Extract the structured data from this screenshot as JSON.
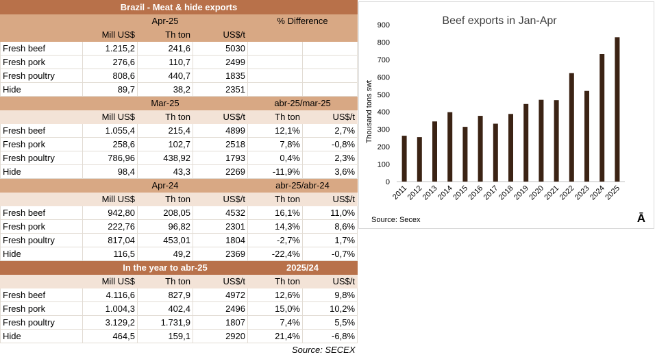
{
  "table": {
    "title": "Brazil - Meat & hide exports",
    "section1": {
      "period": "Apr-25",
      "diff_label": "% Difference",
      "headers": [
        "Mill US$",
        "Th ton",
        "US$/t"
      ],
      "rows": [
        {
          "product": "Fresh beef",
          "mill_usd": "1.215,2",
          "th_ton": "241,6",
          "usd_t": "5030"
        },
        {
          "product": "Fresh pork",
          "mill_usd": "276,6",
          "th_ton": "110,7",
          "usd_t": "2499"
        },
        {
          "product": "Fresh poultry",
          "mill_usd": "808,6",
          "th_ton": "440,7",
          "usd_t": "1835"
        },
        {
          "product": "Hide",
          "mill_usd": "89,7",
          "th_ton": "38,2",
          "usd_t": "2351"
        }
      ]
    },
    "section2": {
      "period": "Mar-25",
      "comparison": "abr-25/mar-25",
      "headers": [
        "Mill US$",
        "Th ton",
        "US$/t",
        "Th ton",
        "US$/t"
      ],
      "rows": [
        {
          "product": "Fresh beef",
          "mill_usd": "1.055,4",
          "th_ton": "215,4",
          "usd_t": "4899",
          "pct_ton": "12,1%",
          "pct_usd_t": "2,7%"
        },
        {
          "product": "Fresh pork",
          "mill_usd": "258,6",
          "th_ton": "102,7",
          "usd_t": "2518",
          "pct_ton": "7,8%",
          "pct_usd_t": "-0,8%"
        },
        {
          "product": "Fresh poultry",
          "mill_usd": "786,96",
          "th_ton": "438,92",
          "usd_t": "1793",
          "pct_ton": "0,4%",
          "pct_usd_t": "2,3%"
        },
        {
          "product": "Hide",
          "mill_usd": "98,4",
          "th_ton": "43,3",
          "usd_t": "2269",
          "pct_ton": "-11,9%",
          "pct_usd_t": "3,6%"
        }
      ]
    },
    "section3": {
      "period": "Apr-24",
      "comparison": "abr-25/abr-24",
      "headers": [
        "Mill US$",
        "Th ton",
        "US$/t",
        "Th ton",
        "US$/t"
      ],
      "rows": [
        {
          "product": "Fresh beef",
          "mill_usd": "942,80",
          "th_ton": "208,05",
          "usd_t": "4532",
          "pct_ton": "16,1%",
          "pct_usd_t": "11,0%"
        },
        {
          "product": "Fresh pork",
          "mill_usd": "222,76",
          "th_ton": "96,82",
          "usd_t": "2301",
          "pct_ton": "14,3%",
          "pct_usd_t": "8,6%"
        },
        {
          "product": "Fresh poultry",
          "mill_usd": "817,04",
          "th_ton": "453,01",
          "usd_t": "1804",
          "pct_ton": "-2,7%",
          "pct_usd_t": "1,7%"
        },
        {
          "product": "Hide",
          "mill_usd": "116,5",
          "th_ton": "49,2",
          "usd_t": "2369",
          "pct_ton": "-22,4%",
          "pct_usd_t": "-0,7%"
        }
      ]
    },
    "section4": {
      "period": "In the year to abr-25",
      "comparison": "2025/24",
      "headers": [
        "Mill US$",
        "Th ton",
        "US$/t",
        "Th ton",
        "US$/t"
      ],
      "rows": [
        {
          "product": "Fresh beef",
          "mill_usd": "4.116,6",
          "th_ton": "827,9",
          "usd_t": "4972",
          "pct_ton": "12,6%",
          "pct_usd_t": "9,8%"
        },
        {
          "product": "Fresh pork",
          "mill_usd": "1.004,3",
          "th_ton": "402,4",
          "usd_t": "2496",
          "pct_ton": "15,0%",
          "pct_usd_t": "10,2%"
        },
        {
          "product": "Fresh poultry",
          "mill_usd": "3.129,2",
          "th_ton": "1.731,9",
          "usd_t": "1807",
          "pct_ton": "7,4%",
          "pct_usd_t": "5,5%"
        },
        {
          "product": "Hide",
          "mill_usd": "464,5",
          "th_ton": "159,1",
          "usd_t": "2920",
          "pct_ton": "21,4%",
          "pct_usd_t": "-6,8%"
        }
      ]
    },
    "source": "Source: SECEX"
  },
  "chart_data": {
    "type": "bar",
    "title": "Beef exports in Jan-Apr",
    "xlabel": "",
    "ylabel": "Thousand tons swt",
    "categories": [
      "2011",
      "2012",
      "2013",
      "2014",
      "2015",
      "2016",
      "2017",
      "2018",
      "2019",
      "2020",
      "2021",
      "2022",
      "2023",
      "2024",
      "2025"
    ],
    "values": [
      263,
      255,
      345,
      398,
      314,
      377,
      332,
      388,
      445,
      469,
      467,
      622,
      520,
      731,
      828
    ],
    "ylim": [
      0,
      900
    ],
    "yticks": [
      0,
      100,
      200,
      300,
      400,
      500,
      600,
      700,
      800,
      900
    ],
    "grid": false,
    "legend": "none",
    "bar_color": "#3b2314",
    "source": "Source: Secex",
    "logo": "Ā"
  }
}
